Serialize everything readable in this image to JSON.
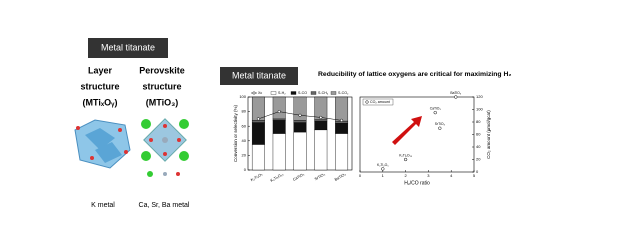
{
  "left": {
    "header": "Metal titanate",
    "layer_title": [
      "Layer",
      "structure",
      "(MTiₓOᵧ)"
    ],
    "perovskite_title": [
      "Perovskite",
      "structure",
      "(MTiO₃)"
    ],
    "layer_caption": "K metal",
    "perovskite_caption": "Ca, Sr, Ba metal"
  },
  "right": {
    "header": "Metal titanate",
    "title": "Reducibility of lattice oxygens are critical for maximizing H₂"
  },
  "chart_data": [
    {
      "type": "bar",
      "stacked": true,
      "y_label": "Conversion or selectivity (%)",
      "categories": [
        "K₂Ti₂O₅",
        "K₂Ti₆O₁₃",
        "CaTiO₃",
        "SrTiO₃",
        "BaTiO₃"
      ],
      "ylim": [
        0,
        100
      ],
      "yticks": [
        0,
        20,
        40,
        60,
        80,
        100
      ],
      "series": [
        {
          "name": "Xc",
          "kind": "line",
          "color": "#000000",
          "values": [
            70,
            80,
            75,
            72,
            68
          ]
        },
        {
          "name": "S-H₂",
          "color": "#ffffff",
          "values": [
            35,
            50,
            52,
            55,
            50
          ]
        },
        {
          "name": "S-CO",
          "color": "#111111",
          "values": [
            30,
            18,
            13,
            12,
            14
          ]
        },
        {
          "name": "S-CH₄",
          "color": "#666666",
          "values": [
            3,
            2,
            3,
            2,
            3
          ]
        },
        {
          "name": "S-CO₂",
          "color": "#9a9a9a",
          "values": [
            32,
            30,
            32,
            31,
            33
          ]
        }
      ]
    },
    {
      "type": "scatter",
      "x_label": "H₂/CO ratio",
      "y_label": "CO₂ amount (μmol/gcat)",
      "legend": "CO₂ amount",
      "xlim": [
        0,
        5
      ],
      "xticks": [
        0,
        1,
        2,
        3,
        4,
        5
      ],
      "ylim": [
        0,
        120
      ],
      "yticks": [
        0,
        20,
        40,
        60,
        80,
        100,
        120
      ],
      "x": [
        1.0,
        2.0,
        3.3,
        3.5,
        4.2
      ],
      "values": [
        5,
        20,
        95,
        70,
        120
      ],
      "point_labels": [
        "K₂Ti₂O₅",
        "K₂Ti₆O₁₃",
        "CaTiO₃",
        "SrTiO₃",
        "BaTiO₃"
      ],
      "color": "#000000"
    }
  ]
}
